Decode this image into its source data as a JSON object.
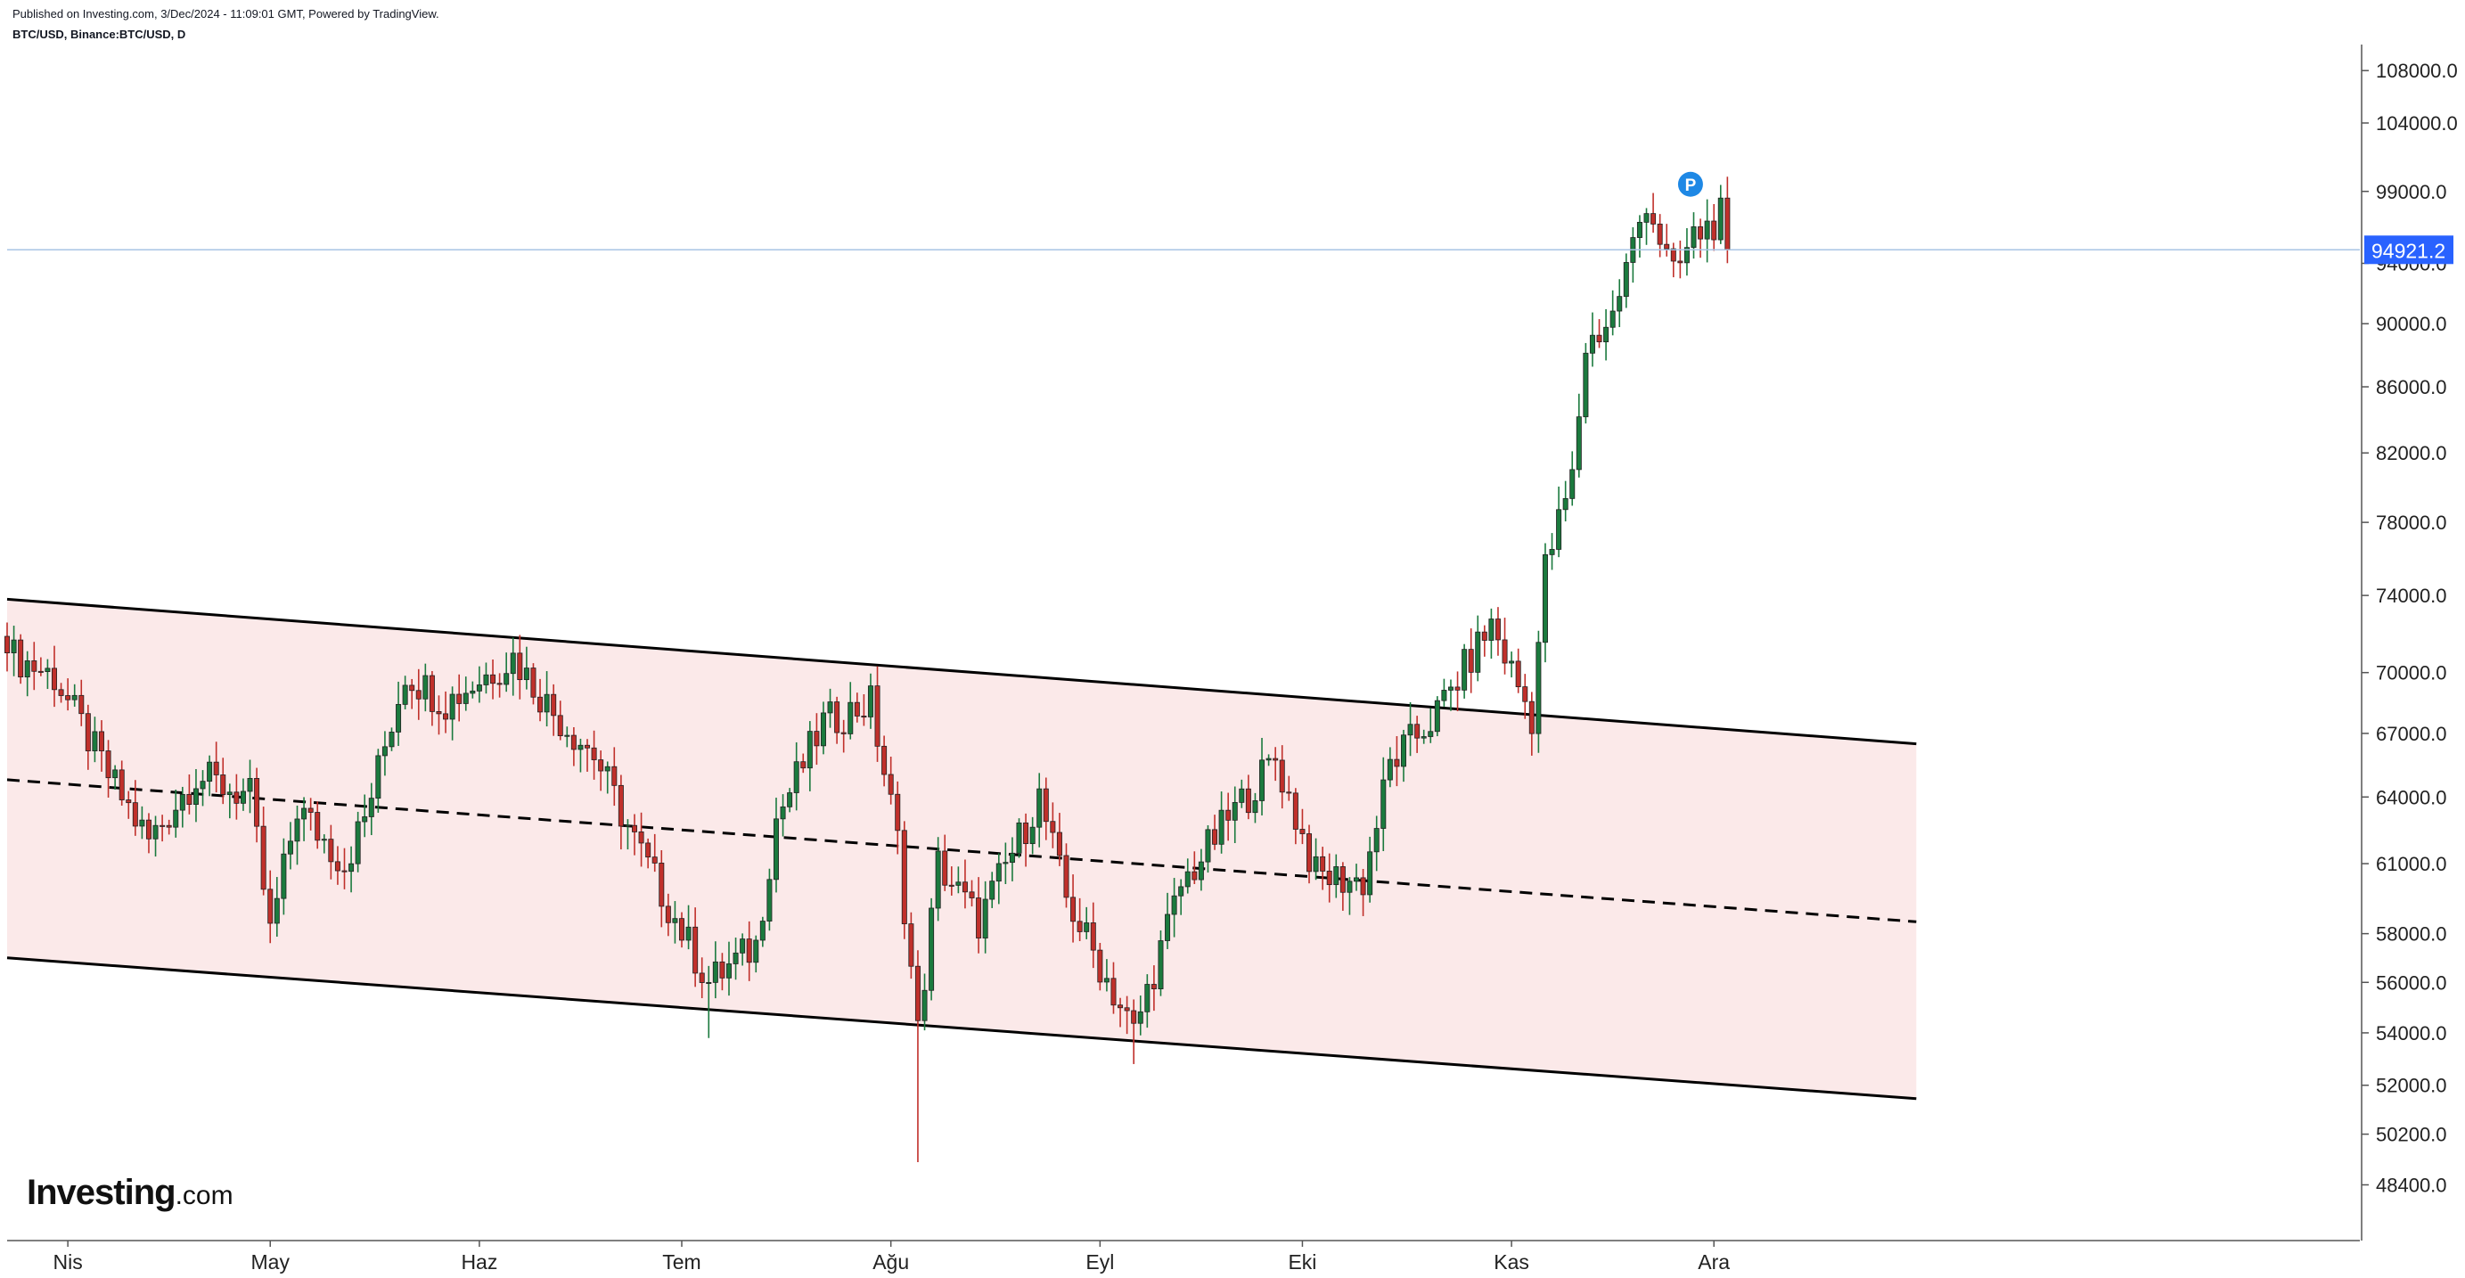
{
  "header": {
    "publish_info": "Published on Investing.com, 3/Dec/2024 - 11:09:01 GMT, Powered by TradingView.",
    "symbol": "BTC/USD, Binance:BTC/USD, D"
  },
  "logo": {
    "main": "Investing",
    "suffix": ".com"
  },
  "chart_data": {
    "type": "candlestick",
    "title": "BTC/USD, Binance:BTC/USD, D",
    "x_ticks": [
      "Nis",
      "May",
      "Haz",
      "Tem",
      "Ağu",
      "Eyl",
      "Eki",
      "Kas",
      "Ara"
    ],
    "y_ticks": [
      108000.0,
      104000.0,
      99000.0,
      94000.0,
      90000.0,
      86000.0,
      82000.0,
      78000.0,
      74000.0,
      70000.0,
      67000.0,
      64000.0,
      61000.0,
      58000.0,
      56000.0,
      54000.0,
      52000.0,
      50200.0,
      48400.0
    ],
    "y_tick_labels": [
      "108000.0",
      "104000.0",
      "99000.0",
      "94000.0",
      "90000.0",
      "86000.0",
      "82000.0",
      "78000.0",
      "74000.0",
      "70000.0",
      "67000.0",
      "64000.0",
      "61000.0",
      "58000.0",
      "56000.0",
      "54000.0",
      "52000.0",
      "50200.0",
      "48400.0"
    ],
    "y_scale": "log",
    "ylim": [
      47400,
      109200
    ],
    "last_price": 94921.2,
    "last_price_label": "94921.2",
    "marker_label": "P",
    "colors": {
      "up": "#1b7a3e",
      "down": "#c0302b",
      "channel_fill": "#fbe9e9",
      "price_line": "#a9c4e4",
      "price_tag": "#2962ff",
      "marker": "#1e88e5"
    },
    "channel": {
      "upper": [
        {
          "x": "2024-03-23",
          "y": 73800
        },
        {
          "x": "2024-12-31",
          "y": 66500
        }
      ],
      "middle": [
        {
          "x": "2024-03-23",
          "y": 64800
        },
        {
          "x": "2024-12-31",
          "y": 58500
        }
      ],
      "lower": [
        {
          "x": "2024-03-23",
          "y": 57000
        },
        {
          "x": "2024-12-31",
          "y": 51500
        }
      ]
    },
    "anchors": [
      {
        "date": "2024-03-23",
        "price": 71000
      },
      {
        "date": "2024-03-30",
        "price": 69800
      },
      {
        "date": "2024-04-07",
        "price": 65000
      },
      {
        "date": "2024-04-13",
        "price": 62000
      },
      {
        "date": "2024-04-20",
        "price": 65000
      },
      {
        "date": "2024-04-28",
        "price": 64000
      },
      {
        "date": "2024-05-01",
        "price": 58000
      },
      {
        "date": "2024-05-05",
        "price": 63500
      },
      {
        "date": "2024-05-12",
        "price": 61000
      },
      {
        "date": "2024-05-15",
        "price": 63000
      },
      {
        "date": "2024-05-21",
        "price": 70000
      },
      {
        "date": "2024-05-27",
        "price": 68500
      },
      {
        "date": "2024-06-06",
        "price": 70800
      },
      {
        "date": "2024-06-12",
        "price": 68000
      },
      {
        "date": "2024-06-18",
        "price": 66000
      },
      {
        "date": "2024-06-24",
        "price": 62000
      },
      {
        "date": "2024-07-05",
        "price": 56000
      },
      {
        "date": "2024-07-12",
        "price": 57500
      },
      {
        "date": "2024-07-15",
        "price": 63000
      },
      {
        "date": "2024-07-22",
        "price": 67500
      },
      {
        "date": "2024-07-29",
        "price": 68500
      },
      {
        "date": "2024-08-02",
        "price": 62000
      },
      {
        "date": "2024-08-05",
        "price": 54000
      },
      {
        "date": "2024-08-08",
        "price": 61000
      },
      {
        "date": "2024-08-14",
        "price": 58500
      },
      {
        "date": "2024-08-23",
        "price": 64000
      },
      {
        "date": "2024-08-27",
        "price": 59500
      },
      {
        "date": "2024-09-06",
        "price": 54000
      },
      {
        "date": "2024-09-13",
        "price": 60000
      },
      {
        "date": "2024-09-20",
        "price": 63000
      },
      {
        "date": "2024-09-27",
        "price": 65800
      },
      {
        "date": "2024-10-03",
        "price": 60500
      },
      {
        "date": "2024-10-10",
        "price": 60200
      },
      {
        "date": "2024-10-14",
        "price": 65500
      },
      {
        "date": "2024-10-21",
        "price": 68000
      },
      {
        "date": "2024-10-29",
        "price": 72500
      },
      {
        "date": "2024-11-04",
        "price": 67800
      },
      {
        "date": "2024-11-06",
        "price": 75500
      },
      {
        "date": "2024-11-10",
        "price": 80500
      },
      {
        "date": "2024-11-12",
        "price": 88500
      },
      {
        "date": "2024-11-16",
        "price": 90500
      },
      {
        "date": "2024-11-21",
        "price": 98500
      },
      {
        "date": "2024-11-25",
        "price": 93000
      },
      {
        "date": "2024-11-28",
        "price": 95800
      },
      {
        "date": "2024-12-02",
        "price": 97200
      },
      {
        "date": "2024-12-03",
        "price": 94921
      }
    ]
  }
}
